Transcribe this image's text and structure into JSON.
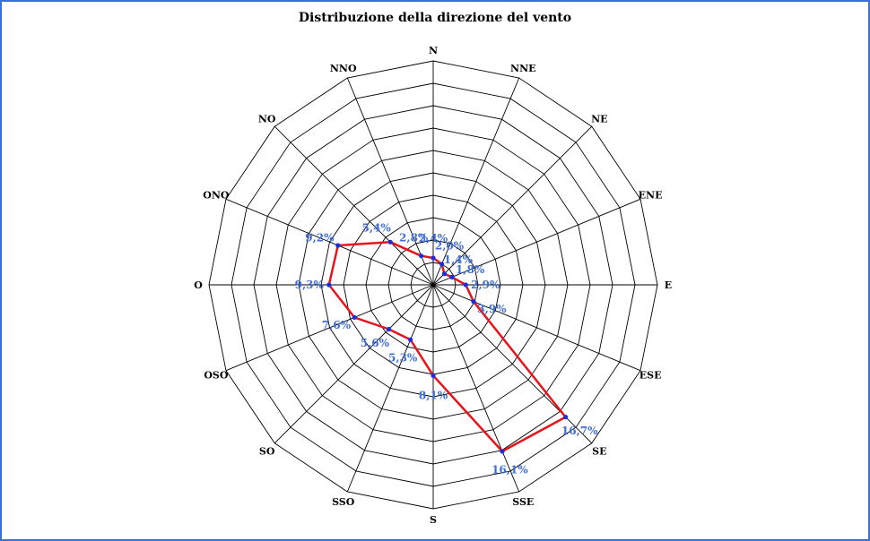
{
  "chart_data": {
    "type": "radar",
    "title": "Distribuzione della direzione del vento",
    "categories": [
      "N",
      "NNE",
      "NE",
      "ENE",
      "E",
      "ESE",
      "SE",
      "SSE",
      "S",
      "SSO",
      "SO",
      "OSO",
      "O",
      "ONO",
      "NO",
      "NNO"
    ],
    "series": [
      {
        "values": [
          2.4,
          2.0,
          1.4,
          1.8,
          2.9,
          3.9,
          16.7,
          16.1,
          8.1,
          5.3,
          5.6,
          7.6,
          9.3,
          9.2,
          5.4,
          2.8
        ],
        "labels": [
          "2,4%",
          "2,0%",
          "1,4%",
          "1,8%",
          "2,9%",
          "3,9%",
          "16,7%",
          "16,1%",
          "8,1%",
          "5,3%",
          "5,6%",
          "7,6%",
          "9,3%",
          "9,2%",
          "5,4%",
          "2,8%"
        ]
      }
    ],
    "rlim": [
      0,
      20
    ],
    "grid_rings": 10,
    "grid": true,
    "colors": {
      "line": "#e8141c",
      "marker": "#1a2ee0",
      "label": "#3f6fd6",
      "grid": "#000000",
      "border": "#3a6fd8"
    }
  }
}
